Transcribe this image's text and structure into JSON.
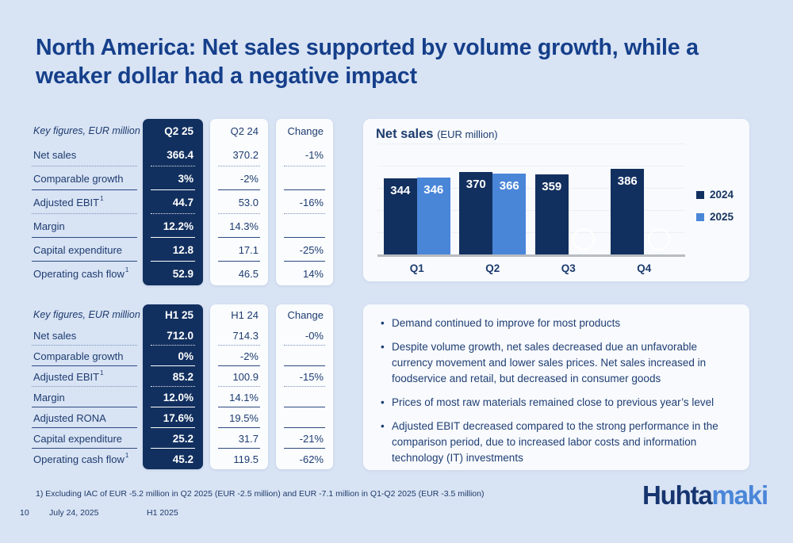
{
  "slide": {
    "title": "North America: Net sales supported by volume growth, while a weaker dollar had a negative impact"
  },
  "kpi_tables": [
    {
      "corner_label": "Key figures, EUR million",
      "columns": [
        "Q2 25",
        "Q2 24",
        "Change"
      ],
      "rows": [
        {
          "label": "Net sales",
          "sup": "",
          "indent": false,
          "values": [
            "366.4",
            "370.2",
            "-1%"
          ],
          "divider": "dotted"
        },
        {
          "label": "Comparable growth",
          "sup": "",
          "indent": true,
          "values": [
            "3%",
            "-2%",
            ""
          ],
          "divider": "solid"
        },
        {
          "label": "Adjusted EBIT",
          "sup": "1",
          "indent": false,
          "values": [
            "44.7",
            "53.0",
            "-16%"
          ],
          "divider": "dotted"
        },
        {
          "label": "Margin",
          "sup": "",
          "indent": true,
          "values": [
            "12.2%",
            "14.3%",
            ""
          ],
          "divider": "solid"
        },
        {
          "label": "Capital expenditure",
          "sup": "",
          "indent": false,
          "values": [
            "12.8",
            "17.1",
            "-25%"
          ],
          "divider": "solid"
        },
        {
          "label": "Operating cash flow",
          "sup": "1",
          "indent": false,
          "values": [
            "52.9",
            "46.5",
            "14%"
          ],
          "divider": "none"
        }
      ]
    },
    {
      "corner_label": "Key figures, EUR million",
      "columns": [
        "H1 25",
        "H1 24",
        "Change"
      ],
      "rows": [
        {
          "label": "Net sales",
          "sup": "",
          "indent": false,
          "values": [
            "712.0",
            "714.3",
            "-0%"
          ],
          "divider": "dotted"
        },
        {
          "label": "Comparable growth",
          "sup": "",
          "indent": true,
          "values": [
            "0%",
            "-2%",
            ""
          ],
          "divider": "solid"
        },
        {
          "label": "Adjusted EBIT",
          "sup": "1",
          "indent": false,
          "values": [
            "85.2",
            "100.9",
            "-15%"
          ],
          "divider": "dotted"
        },
        {
          "label": "Margin",
          "sup": "",
          "indent": true,
          "values": [
            "12.0%",
            "14.1%",
            ""
          ],
          "divider": "solid"
        },
        {
          "label": "Adjusted RONA",
          "sup": "",
          "indent": false,
          "values": [
            "17.6%",
            "19.5%",
            ""
          ],
          "divider": "solid"
        },
        {
          "label": "Capital expenditure",
          "sup": "",
          "indent": false,
          "values": [
            "25.2",
            "31.7",
            "-21%"
          ],
          "divider": "solid"
        },
        {
          "label": "Operating cash flow",
          "sup": "1",
          "indent": false,
          "values": [
            "45.2",
            "119.5",
            "-62%"
          ],
          "divider": "none"
        }
      ]
    }
  ],
  "chart_data": {
    "type": "bar",
    "title": "Net sales",
    "unit": "(EUR million)",
    "categories": [
      "Q1",
      "Q2",
      "Q3",
      "Q4"
    ],
    "series": [
      {
        "name": "2024",
        "color": "#12305f",
        "values": [
          344,
          370,
          359,
          386
        ]
      },
      {
        "name": "2025",
        "color": "#4a86d8",
        "values": [
          346,
          366,
          null,
          null
        ]
      }
    ],
    "ylim": [
      0,
      560
    ],
    "grid_interval": 100,
    "grid": true,
    "legend_position": "right",
    "xlabel": "",
    "ylabel": ""
  },
  "bullets": [
    "Demand continued to improve for most products",
    "Despite volume growth, net sales decreased due an unfavorable currency movement and lower sales prices. Net sales increased in foodservice and retail, but decreased in consumer goods",
    "Prices of most raw materials remained close to previous year’s level",
    "Adjusted EBIT decreased compared to the strong performance in the comparison period, due to increased labor costs and information technology (IT) investments"
  ],
  "footer": {
    "footnote": "1) Excluding IAC of EUR -5.2 million in Q2 2025 (EUR -2.5 million) and EUR -7.1 million in Q1-Q2 2025 (EUR -3.5 million)",
    "page": "10",
    "date": "July 24, 2025",
    "label": "H1 2025"
  },
  "logo": {
    "part1": "Huhta",
    "part2": "maki"
  },
  "colors": {
    "background": "#d8e3f4",
    "navy": "#12305f",
    "light_blue": "#4a86d8",
    "title_blue": "#153f8a",
    "card_white": "#fafcfe"
  }
}
